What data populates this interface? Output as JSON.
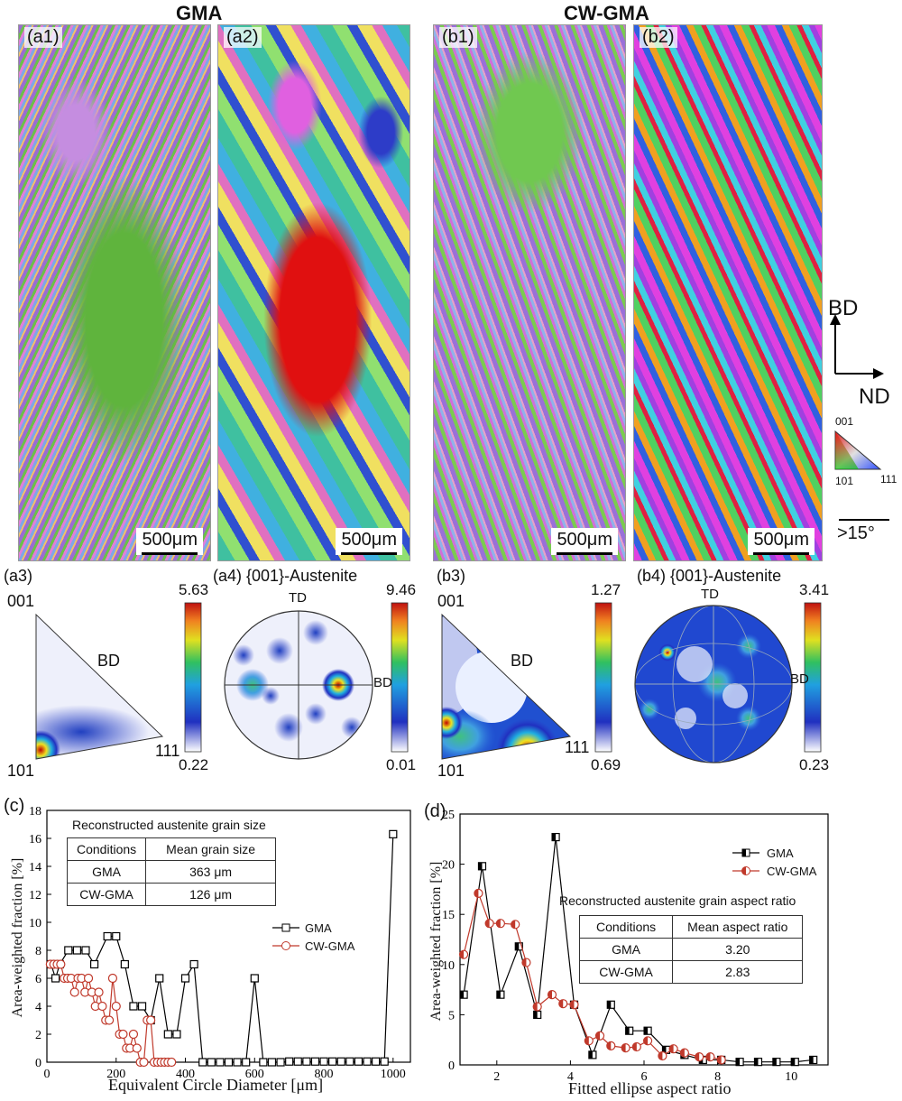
{
  "headers": {
    "left": "GMA",
    "right": "CW-GMA"
  },
  "ebsd_panels": [
    {
      "label": "(a1)",
      "scale": "500μm"
    },
    {
      "label": "(a2)",
      "scale": "500μm"
    },
    {
      "label": "(b1)",
      "scale": "500μm"
    },
    {
      "label": "(b2)",
      "scale": "500μm"
    }
  ],
  "axes_legend": {
    "bd": "BD",
    "nd": "ND",
    "ipf_001": "001",
    "ipf_101": "101",
    "ipf_111": "111",
    "boundary": ">15°"
  },
  "texture": {
    "a3": {
      "label": "(a3)",
      "c001": "001",
      "c101": "101",
      "c111": "111",
      "bd": "BD",
      "max": "5.63",
      "min": "0.22"
    },
    "a4": {
      "label": "(a4) {001}-Austenite",
      "td": "TD",
      "bd": "BD",
      "max": "9.46",
      "min": "0.01"
    },
    "b3": {
      "label": "(b3)",
      "c001": "001",
      "c101": "101",
      "c111": "111",
      "bd": "BD",
      "max": "1.27",
      "min": "0.69"
    },
    "b4": {
      "label": "(b4) {001}-Austenite",
      "td": "TD",
      "bd": "BD",
      "max": "3.41",
      "min": "0.23"
    }
  },
  "chart_data": [
    {
      "type": "line",
      "panel": "(c)",
      "xlabel": "Equivalent Circle Diameter [μm]",
      "ylabel": "Area-weighted fraction [%]",
      "xlim": [
        0,
        1050
      ],
      "ylim": [
        0,
        18
      ],
      "xticks": [
        0,
        200,
        400,
        600,
        800,
        1000
      ],
      "yticks": [
        0,
        2,
        4,
        6,
        8,
        10,
        12,
        14,
        16,
        18
      ],
      "table": {
        "title": "Reconstructed austenite grain size",
        "header": [
          "Conditions",
          "Mean grain size"
        ],
        "rows": [
          [
            "GMA",
            "363 μm"
          ],
          [
            "CW-GMA",
            "126 μm"
          ]
        ]
      },
      "legend_placement": "right",
      "series": [
        {
          "name": "GMA",
          "color": "#000000",
          "marker": "square",
          "x": [
            12,
            25,
            37,
            62,
            87,
            112,
            137,
            175,
            200,
            225,
            250,
            275,
            300,
            325,
            350,
            375,
            400,
            425,
            450,
            475,
            500,
            525,
            550,
            575,
            600,
            625,
            650,
            675,
            700,
            725,
            750,
            775,
            800,
            825,
            850,
            875,
            900,
            925,
            950,
            975,
            1000
          ],
          "y": [
            7,
            6,
            7,
            8,
            8,
            8,
            7,
            9,
            9,
            7,
            4,
            4,
            3,
            6,
            2,
            2,
            6,
            7,
            0,
            0,
            0,
            0,
            0,
            0,
            6,
            0,
            0,
            0,
            0.05,
            0.05,
            0.05,
            0.05,
            0.05,
            0.05,
            0.05,
            0.05,
            0.05,
            0.05,
            0.05,
            0.05,
            16.3
          ]
        },
        {
          "name": "CW-GMA",
          "color": "#c0392b",
          "marker": "circle",
          "x": [
            10,
            20,
            30,
            40,
            50,
            60,
            70,
            80,
            90,
            100,
            110,
            120,
            130,
            140,
            150,
            160,
            170,
            180,
            190,
            200,
            210,
            220,
            230,
            240,
            250,
            260,
            270,
            280,
            290,
            300,
            310,
            320,
            330,
            340,
            350,
            360
          ],
          "y": [
            7,
            7,
            7,
            7,
            6,
            6,
            6,
            5,
            6,
            6,
            5,
            6,
            5,
            4,
            5,
            4,
            3,
            3,
            6,
            4,
            2,
            2,
            1,
            1,
            2,
            1,
            0,
            0,
            3,
            3,
            0,
            0,
            0,
            0,
            0,
            0
          ]
        }
      ]
    },
    {
      "type": "line",
      "panel": "(d)",
      "xlabel": "Fitted ellipse aspect ratio",
      "ylabel": "Area-weighted fraction [%]",
      "xlim": [
        1,
        11
      ],
      "ylim": [
        0,
        25
      ],
      "xticks": [
        2,
        4,
        6,
        8,
        10
      ],
      "yticks": [
        0,
        5,
        10,
        15,
        20,
        25
      ],
      "table": {
        "title": "Reconstructed austenite grain aspect ratio",
        "header": [
          "Conditions",
          "Mean aspect ratio"
        ],
        "rows": [
          [
            "GMA",
            "3.20"
          ],
          [
            "CW-GMA",
            "2.83"
          ]
        ]
      },
      "legend_placement": "top-right",
      "series": [
        {
          "name": "GMA",
          "color": "#000000",
          "marker": "half-square",
          "x": [
            1.1,
            1.6,
            2.1,
            2.6,
            3.1,
            3.6,
            4.1,
            4.6,
            5.1,
            5.6,
            6.1,
            6.6,
            7.1,
            7.6,
            8.1,
            8.6,
            9.1,
            9.6,
            10.1,
            10.6
          ],
          "y": [
            7,
            19.8,
            7,
            11.8,
            5,
            22.7,
            6,
            1,
            6,
            3.4,
            3.4,
            1.5,
            1,
            0.5,
            0.5,
            0.3,
            0.3,
            0.3,
            0.3,
            0.5
          ]
        },
        {
          "name": "CW-GMA",
          "color": "#c0392b",
          "marker": "half-circle",
          "x": [
            1.1,
            1.5,
            1.8,
            2.1,
            2.5,
            2.8,
            3.1,
            3.5,
            3.8,
            4.1,
            4.5,
            4.8,
            5.1,
            5.5,
            5.8,
            6.1,
            6.5,
            6.8,
            7.1,
            7.5,
            7.8,
            8.1
          ],
          "y": [
            11,
            17.1,
            14.1,
            14.1,
            14,
            10.2,
            5.8,
            7,
            6.1,
            6,
            2.4,
            2.9,
            1.9,
            1.7,
            1.8,
            2.4,
            0.9,
            1.6,
            1.2,
            0.8,
            0.8,
            0.5
          ]
        }
      ]
    }
  ]
}
